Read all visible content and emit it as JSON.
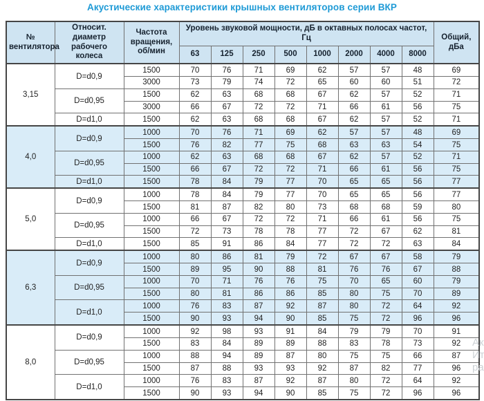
{
  "title": "Акустические характеристики крышных вентиляторов серии ВКР",
  "accent_color": "#1e9ad6",
  "header_bg_color": "#cfe4f2",
  "shaded_row_color": "#d9ecf8",
  "table": {
    "headers": {
      "fan_number": "№ вентилятора",
      "diameter": "Относит. диаметр рабочего колеса",
      "speed": "Частота вращения, об/мин",
      "spl_group": "Уровень звуковой мощности, дБ в октавных полосах частот, Гц",
      "frequencies": [
        "63",
        "125",
        "250",
        "500",
        "1000",
        "2000",
        "4000",
        "8000"
      ],
      "total": "Общий, дБа"
    },
    "groups": [
      {
        "fan": "3,15",
        "shaded": false,
        "diameters": [
          {
            "label": "D=d0,9",
            "rows": [
              {
                "speed": "1500",
                "levels": [
                  70,
                  76,
                  71,
                  69,
                  62,
                  57,
                  57,
                  48
                ],
                "total": "69"
              },
              {
                "speed": "3000",
                "levels": [
                  73,
                  79,
                  74,
                  72,
                  65,
                  60,
                  60,
                  51
                ],
                "total": "72"
              }
            ]
          },
          {
            "label": "D=d0,95",
            "rows": [
              {
                "speed": "1500",
                "levels": [
                  62,
                  63,
                  68,
                  68,
                  67,
                  62,
                  57,
                  52
                ],
                "total": "71"
              },
              {
                "speed": "3000",
                "levels": [
                  66,
                  67,
                  72,
                  72,
                  71,
                  66,
                  61,
                  56
                ],
                "total": "75"
              }
            ]
          },
          {
            "label": "D=d1,0",
            "rows": [
              {
                "speed": "1500",
                "levels": [
                  62,
                  63,
                  68,
                  68,
                  67,
                  62,
                  57,
                  52
                ],
                "total": "71"
              }
            ]
          }
        ]
      },
      {
        "fan": "4,0",
        "shaded": true,
        "diameters": [
          {
            "label": "D=d0,9",
            "rows": [
              {
                "speed": "1000",
                "levels": [
                  70,
                  76,
                  71,
                  69,
                  62,
                  57,
                  57,
                  48
                ],
                "total": "69"
              },
              {
                "speed": "1500",
                "levels": [
                  76,
                  82,
                  77,
                  75,
                  68,
                  63,
                  63,
                  54
                ],
                "total": "75"
              }
            ]
          },
          {
            "label": "D=d0,95",
            "rows": [
              {
                "speed": "1000",
                "levels": [
                  62,
                  63,
                  68,
                  68,
                  67,
                  62,
                  57,
                  52
                ],
                "total": "71"
              },
              {
                "speed": "1500",
                "levels": [
                  66,
                  67,
                  72,
                  72,
                  71,
                  66,
                  61,
                  56
                ],
                "total": "75"
              }
            ]
          },
          {
            "label": "D=d1,0",
            "rows": [
              {
                "speed": "1500",
                "levels": [
                  78,
                  84,
                  79,
                  77,
                  70,
                  65,
                  65,
                  56
                ],
                "total": "77"
              }
            ]
          }
        ]
      },
      {
        "fan": "5,0",
        "shaded": false,
        "diameters": [
          {
            "label": "D=d0,9",
            "rows": [
              {
                "speed": "1000",
                "levels": [
                  78,
                  84,
                  79,
                  77,
                  70,
                  65,
                  65,
                  56
                ],
                "total": "77"
              },
              {
                "speed": "1500",
                "levels": [
                  81,
                  87,
                  82,
                  80,
                  73,
                  68,
                  68,
                  59
                ],
                "total": "80"
              }
            ]
          },
          {
            "label": "D=d0,95",
            "rows": [
              {
                "speed": "1000",
                "levels": [
                  66,
                  67,
                  72,
                  72,
                  71,
                  66,
                  61,
                  56
                ],
                "total": "75"
              },
              {
                "speed": "1500",
                "levels": [
                  72,
                  73,
                  78,
                  78,
                  77,
                  72,
                  67,
                  62
                ],
                "total": "81"
              }
            ]
          },
          {
            "label": "D=d1,0",
            "rows": [
              {
                "speed": "1500",
                "levels": [
                  85,
                  91,
                  86,
                  84,
                  77,
                  72,
                  72,
                  63
                ],
                "total": "84"
              }
            ]
          }
        ]
      },
      {
        "fan": "6,3",
        "shaded": true,
        "diameters": [
          {
            "label": "D=d0,9",
            "rows": [
              {
                "speed": "1000",
                "levels": [
                  80,
                  86,
                  81,
                  79,
                  72,
                  67,
                  67,
                  58
                ],
                "total": "79"
              },
              {
                "speed": "1500",
                "levels": [
                  89,
                  95,
                  90,
                  88,
                  81,
                  76,
                  76,
                  67
                ],
                "total": "88"
              }
            ]
          },
          {
            "label": "D=d0,95",
            "rows": [
              {
                "speed": "1000",
                "levels": [
                  70,
                  71,
                  76,
                  76,
                  75,
                  70,
                  65,
                  60
                ],
                "total": "79"
              },
              {
                "speed": "1500",
                "levels": [
                  80,
                  81,
                  86,
                  86,
                  85,
                  80,
                  75,
                  70
                ],
                "total": "89"
              }
            ]
          },
          {
            "label": "D=d1,0",
            "rows": [
              {
                "speed": "1000",
                "levels": [
                  76,
                  83,
                  87,
                  92,
                  87,
                  80,
                  72,
                  64
                ],
                "total": "92"
              },
              {
                "speed": "1500",
                "levels": [
                  90,
                  93,
                  94,
                  90,
                  85,
                  75,
                  72,
                  96
                ],
                "total": "96"
              }
            ]
          }
        ]
      },
      {
        "fan": "8,0",
        "shaded": false,
        "diameters": [
          {
            "label": "D=d0,9",
            "rows": [
              {
                "speed": "1000",
                "levels": [
                  92,
                  98,
                  93,
                  91,
                  84,
                  79,
                  79,
                  70
                ],
                "total": "91"
              },
              {
                "speed": "1500",
                "levels": [
                  83,
                  84,
                  89,
                  89,
                  88,
                  83,
                  78,
                  73
                ],
                "total": "92"
              }
            ]
          },
          {
            "label": "D=d0,95",
            "rows": [
              {
                "speed": "1000",
                "levels": [
                  88,
                  94,
                  89,
                  87,
                  80,
                  75,
                  75,
                  66
                ],
                "total": "87"
              },
              {
                "speed": "1500",
                "levels": [
                  87,
                  88,
                  93,
                  93,
                  92,
                  87,
                  82,
                  77
                ],
                "total": "96"
              }
            ]
          },
          {
            "label": "D=d1,0",
            "rows": [
              {
                "speed": "1000",
                "levels": [
                  76,
                  83,
                  87,
                  92,
                  87,
                  80,
                  72,
                  64
                ],
                "total": "92"
              },
              {
                "speed": "1500",
                "levels": [
                  90,
                  93,
                  94,
                  90,
                  85,
                  75,
                  72,
                  96
                ],
                "total": "96"
              }
            ]
          }
        ]
      }
    ]
  },
  "watermark": [
    "Ак",
    "Ит",
    "ра"
  ]
}
